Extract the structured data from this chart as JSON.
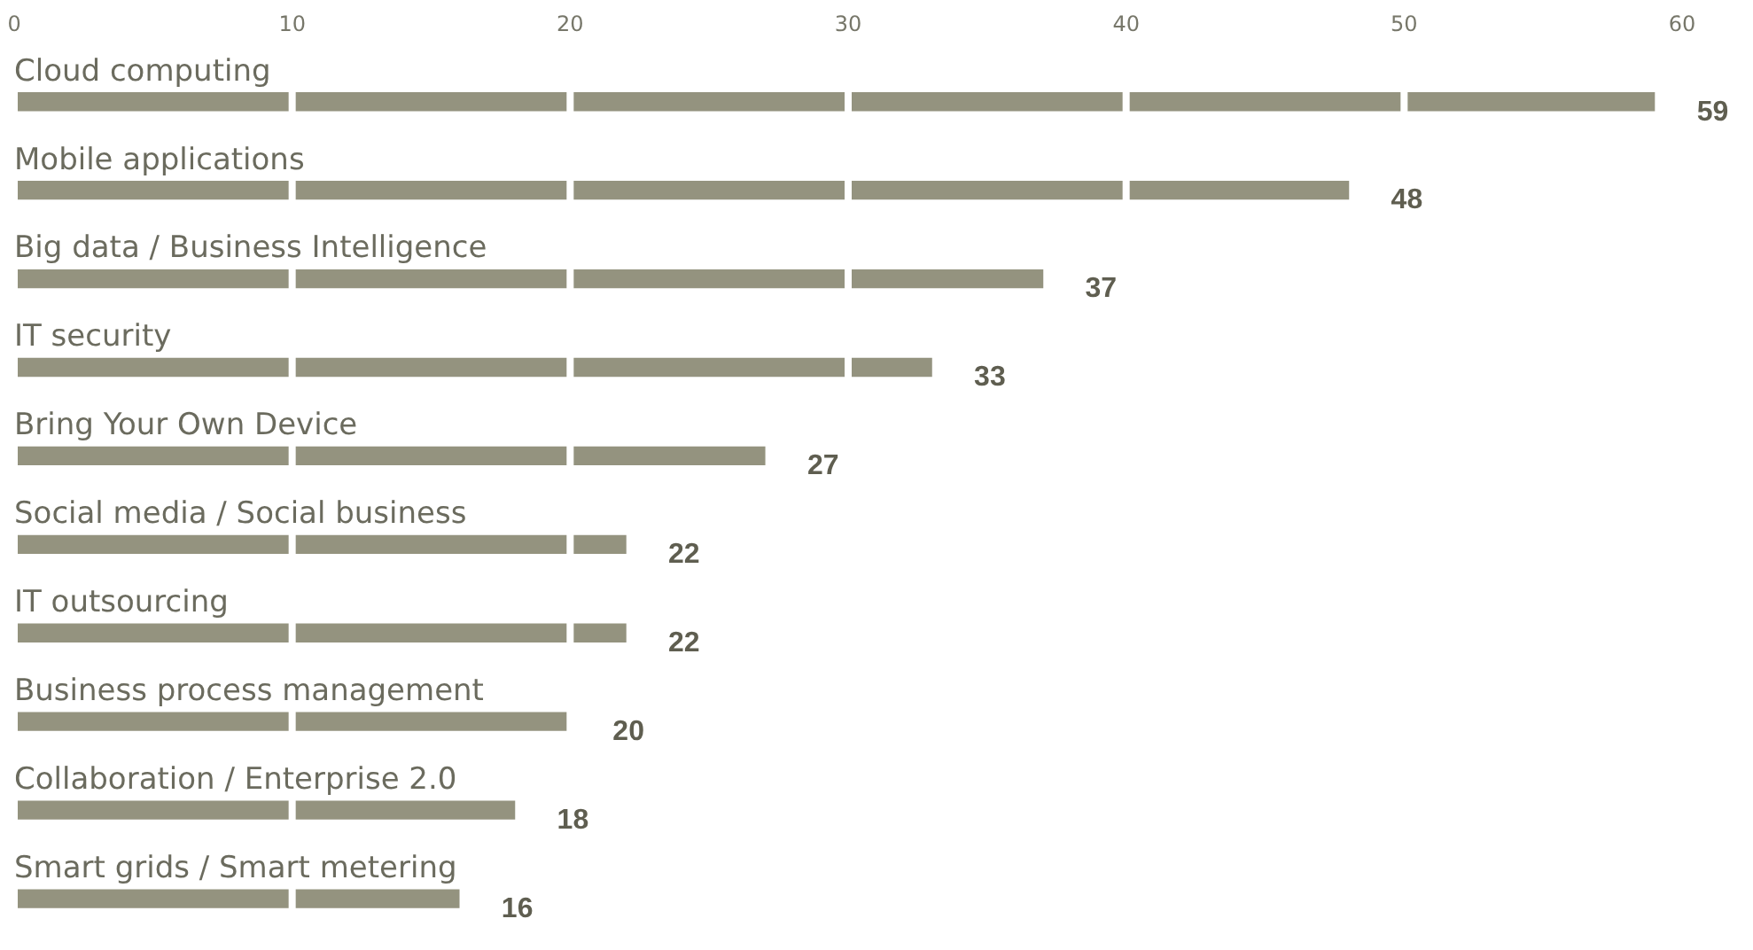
{
  "chart_data": {
    "type": "bar",
    "orientation": "horizontal",
    "categories": [
      "Cloud computing",
      "Mobile applications",
      "Big data / Business Intelligence",
      "IT security",
      "Bring Your Own Device",
      "Social media / Social business",
      "IT outsourcing",
      "Business process management",
      "Collaboration / Enterprise 2.0",
      "Smart grids / Smart metering"
    ],
    "values": [
      59,
      48,
      37,
      33,
      27,
      22,
      22,
      20,
      18,
      16
    ],
    "color": "#94937f",
    "xlim": [
      0,
      60
    ],
    "xticks": [
      0,
      10,
      20,
      30,
      40,
      50,
      60
    ],
    "grid": "x",
    "data_labels": true,
    "legend": false
  }
}
